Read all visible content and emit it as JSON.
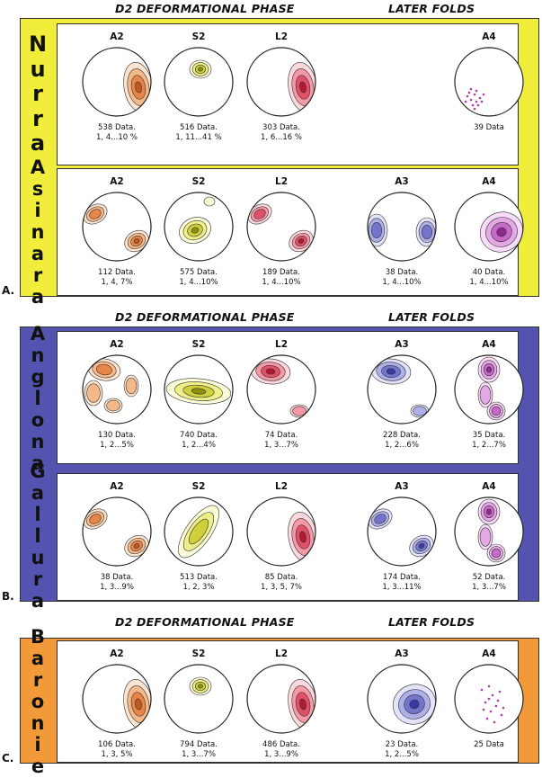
{
  "headers": {
    "d2": "D2 DEFORMATIONAL PHASE",
    "later": "LATER FOLDS"
  },
  "colors": {
    "yellow": "#f0ee3a",
    "blue": "#5553b0",
    "orange": "#f29a3a",
    "brown": "#d86a2a",
    "olive": "#b8b820",
    "red": "#d8344a",
    "indigo": "#4a4ab8",
    "magenta": "#b03ab0"
  },
  "sections": [
    {
      "letter": "A.",
      "rows": [
        {
          "region": "Nurra",
          "nets": [
            {
              "title": "A2",
              "line1": "538 Data.",
              "line2": "1, 4...10 %",
              "type": "brown",
              "style": "side-right"
            },
            {
              "title": "S2",
              "line1": "516 Data.",
              "line2": "1, 11...41 %",
              "type": "olive",
              "style": "top-small"
            },
            {
              "title": "L2",
              "line1": "303 Data.",
              "line2": "1, 6...16 %",
              "type": "red",
              "style": "side-right"
            },
            {
              "title": "A4",
              "line1": "39 Data",
              "line2": "",
              "type": "magenta",
              "style": "dots-low"
            }
          ]
        },
        {
          "region": "Asinara",
          "nets": [
            {
              "title": "A2",
              "line1": "112 Data.",
              "line2": "1, 4, 7%",
              "type": "brown",
              "style": "two-opp"
            },
            {
              "title": "S2",
              "line1": "575 Data.",
              "line2": "1, 4...10%",
              "type": "olive",
              "style": "center-low"
            },
            {
              "title": "L2",
              "line1": "189 Data.",
              "line2": "1, 4...10%",
              "type": "red",
              "style": "two-opp"
            },
            {
              "title": "A3",
              "line1": "38 Data.",
              "line2": "1, 4...10%",
              "type": "indigo",
              "style": "sides"
            },
            {
              "title": "A4",
              "line1": "40 Data.",
              "line2": "1, 4...10%",
              "type": "magenta",
              "style": "right-mid"
            }
          ]
        }
      ]
    },
    {
      "letter": "B.",
      "rows": [
        {
          "region": "Anglona",
          "nets": [
            {
              "title": "A2",
              "line1": "130 Data.",
              "line2": "1, 2...5%",
              "type": "brown",
              "style": "scatter"
            },
            {
              "title": "S2",
              "line1": "740 Data.",
              "line2": "1, 2...4%",
              "type": "olive",
              "style": "band"
            },
            {
              "title": "L2",
              "line1": "74 Data.",
              "line2": "1, 3...7%",
              "type": "red",
              "style": "top-left"
            },
            {
              "title": "A3",
              "line1": "228 Data.",
              "line2": "1, 2...6%",
              "type": "indigo",
              "style": "top-left"
            },
            {
              "title": "A4",
              "line1": "35 Data.",
              "line2": "1, 2...7%",
              "type": "magenta",
              "style": "vertical"
            }
          ]
        },
        {
          "region": "Gallura",
          "nets": [
            {
              "title": "A2",
              "line1": "38 Data.",
              "line2": "1, 3...9%",
              "type": "brown",
              "style": "two-opp"
            },
            {
              "title": "S2",
              "line1": "513 Data.",
              "line2": "1, 2, 3%",
              "type": "olive",
              "style": "diag"
            },
            {
              "title": "L2",
              "line1": "85 Data.",
              "line2": "1, 3, 5, 7%",
              "type": "red",
              "style": "side-right"
            },
            {
              "title": "A3",
              "line1": "174 Data.",
              "line2": "1, 3...11%",
              "type": "indigo",
              "style": "two-opp"
            },
            {
              "title": "A4",
              "line1": "52 Data.",
              "line2": "1, 3...7%",
              "type": "magenta",
              "style": "vertical"
            }
          ]
        }
      ]
    },
    {
      "letter": "C.",
      "rows": [
        {
          "region": "Baronie",
          "nets": [
            {
              "title": "A2",
              "line1": "106 Data.",
              "line2": "1, 3, 5%",
              "type": "brown",
              "style": "side-right"
            },
            {
              "title": "S2",
              "line1": "794 Data.",
              "line2": "1, 3...7%",
              "type": "olive",
              "style": "top-small"
            },
            {
              "title": "L2",
              "line1": "486 Data.",
              "line2": "1, 3...9%",
              "type": "red",
              "style": "side-right"
            },
            {
              "title": "A3",
              "line1": "23 Data.",
              "line2": "1, 2...5%",
              "type": "indigo",
              "style": "right-mid"
            },
            {
              "title": "A4",
              "line1": "25 Data",
              "line2": "",
              "type": "magenta",
              "style": "dots-mid"
            }
          ]
        }
      ]
    }
  ]
}
